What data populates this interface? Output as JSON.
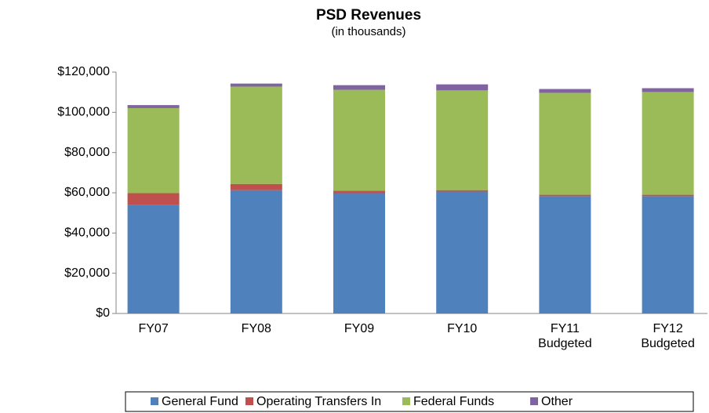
{
  "chart_data": {
    "type": "stacked_bar",
    "title": "PSD Revenues",
    "subtitle": "(in thousands)",
    "categories": [
      "FY07",
      "FY08",
      "FY09",
      "FY10",
      "FY11 Budgeted",
      "FY12 Budgeted"
    ],
    "series": [
      {
        "name": "General Fund",
        "color": "#4f81bd",
        "values": [
          54000,
          61300,
          59800,
          60600,
          58300,
          58300
        ]
      },
      {
        "name": "Operating Transfers In",
        "color": "#c0504d",
        "values": [
          5800,
          3100,
          1200,
          700,
          700,
          700
        ]
      },
      {
        "name": "Federal Funds",
        "color": "#9bbb59",
        "values": [
          42300,
          48400,
          50200,
          49600,
          50700,
          51100
        ]
      },
      {
        "name": "Other",
        "color": "#8064a2",
        "values": [
          1500,
          1500,
          2300,
          3000,
          1900,
          1900
        ]
      }
    ],
    "ylim": [
      0,
      120000
    ],
    "yticks": [
      {
        "value": 0,
        "label": "$0"
      },
      {
        "value": 20000,
        "label": "$20,000"
      },
      {
        "value": 40000,
        "label": "$40,000"
      },
      {
        "value": 60000,
        "label": "$60,000"
      },
      {
        "value": 80000,
        "label": "$80,000"
      },
      {
        "value": 100000,
        "label": "$100,000"
      },
      {
        "value": 120000,
        "label": "$120,000"
      }
    ],
    "legend": "bottom"
  }
}
